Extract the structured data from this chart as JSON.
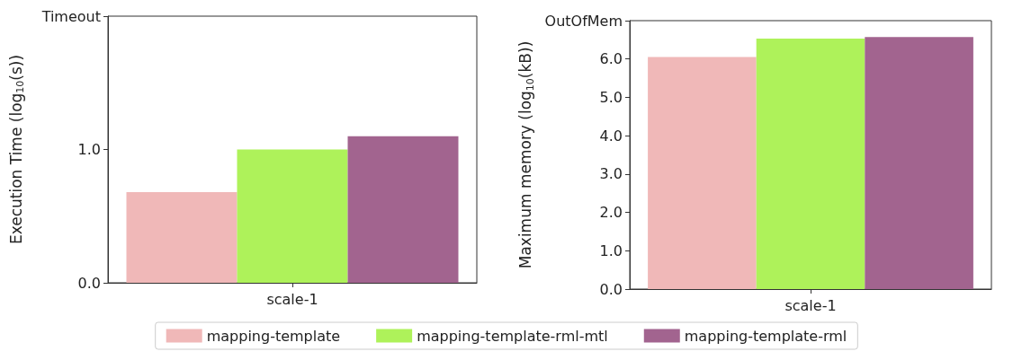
{
  "chart_data": [
    {
      "type": "bar",
      "ylabel": "Execution Time (log$_{10}$(s))",
      "categories": [
        "scale-1"
      ],
      "series": [
        {
          "name": "mapping-template",
          "color": "#f0b8b8",
          "values": [
            0.68
          ]
        },
        {
          "name": "mapping-template-rml-mtl",
          "color": "#aef25a",
          "values": [
            1.0
          ]
        },
        {
          "name": "mapping-template-rml",
          "color": "#a2648f",
          "values": [
            1.1
          ]
        }
      ],
      "ylim": [
        0,
        2
      ],
      "yticks": [
        {
          "value": 0,
          "label": "0.0"
        },
        {
          "value": 1,
          "label": "1.0"
        },
        {
          "value": 2,
          "label": "Timeout"
        }
      ],
      "grid": false,
      "legend": "bottom"
    },
    {
      "type": "bar",
      "ylabel": "Maximum memory (log$_{10}$(kB))",
      "categories": [
        "scale-1"
      ],
      "series": [
        {
          "color": "#f0b8b8",
          "values": [
            6.05
          ]
        },
        {
          "color": "#aef25a",
          "values": [
            6.53
          ]
        },
        {
          "color": "#a2648f",
          "values": [
            6.57
          ]
        }
      ],
      "ylim": [
        0,
        7
      ],
      "yticks": [
        {
          "value": 0,
          "label": "0.0"
        },
        {
          "value": 1,
          "label": "1.0"
        },
        {
          "value": 2,
          "label": "2.0"
        },
        {
          "value": 3,
          "label": "3.0"
        },
        {
          "value": 4,
          "label": "4.0"
        },
        {
          "value": 5,
          "label": "5.0"
        },
        {
          "value": 6,
          "label": "6.0"
        },
        {
          "value": 7,
          "label": "OutOfMem"
        }
      ],
      "grid": false,
      "legend": false
    }
  ]
}
